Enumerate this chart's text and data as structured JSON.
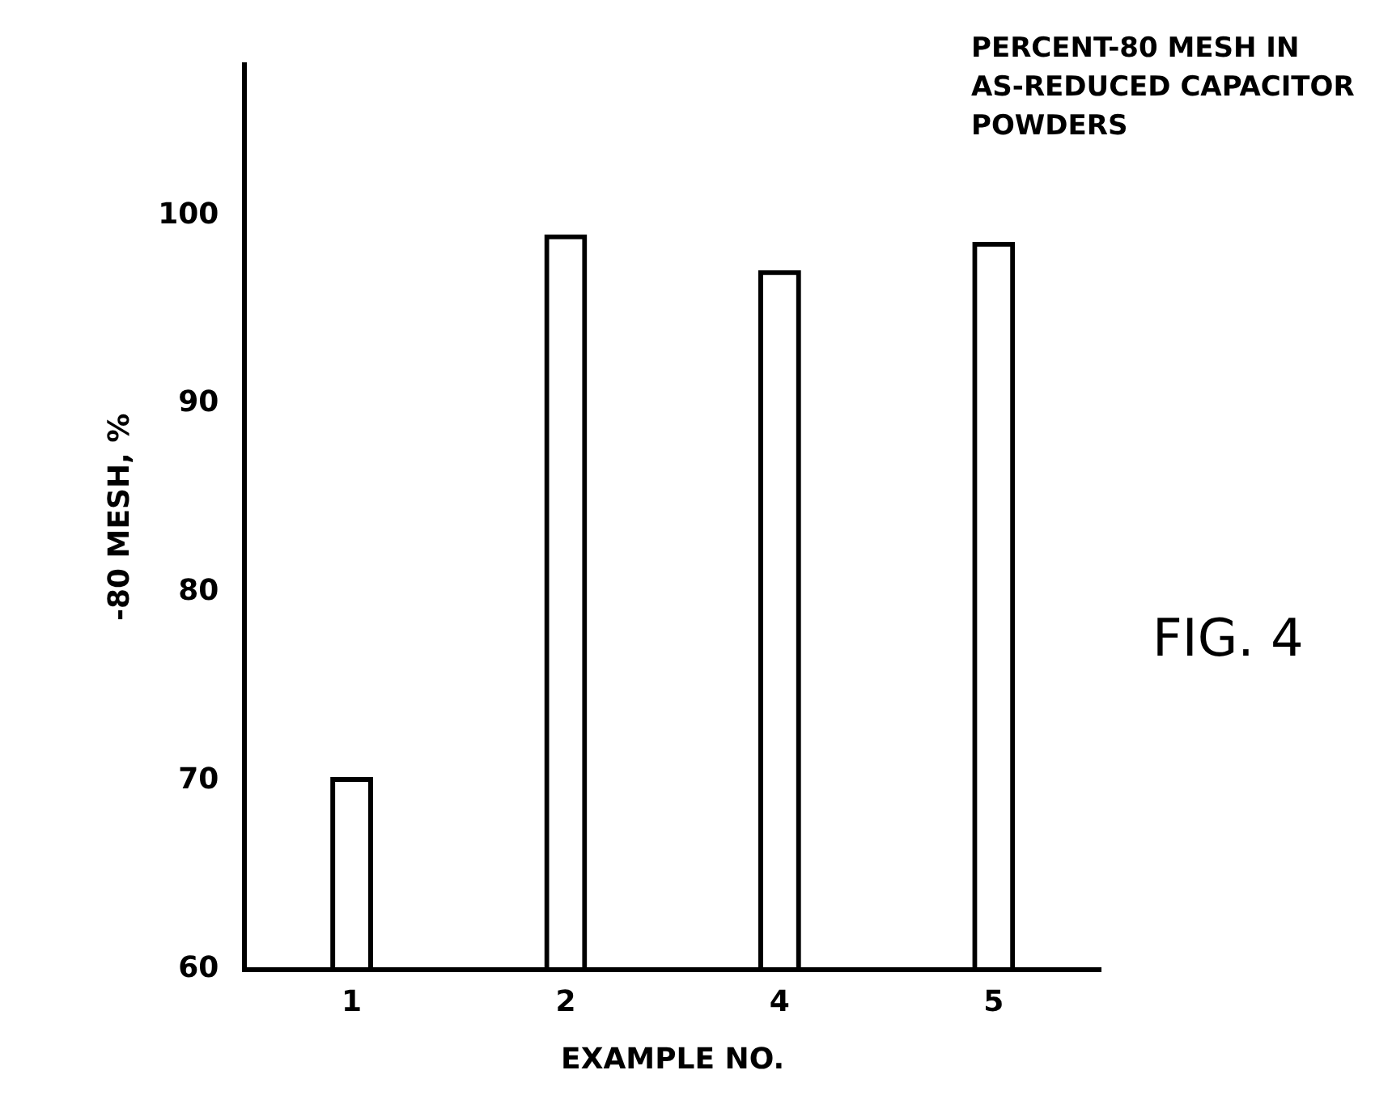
{
  "chart_data": {
    "type": "bar",
    "title": "PERCENT-80 MESH IN\nAS-REDUCED CAPACITOR\nPOWDERS",
    "xlabel": "EXAMPLE NO.",
    "ylabel": "-80 MESH, %",
    "categories": [
      "1",
      "2",
      "4",
      "5"
    ],
    "values": [
      70.2,
      99.0,
      97.1,
      98.6
    ],
    "color": "#000000",
    "ylim": [
      60,
      108
    ],
    "yticks": [
      60,
      70,
      80,
      90,
      100
    ],
    "grid": false,
    "annotations": [
      "FIG. 4"
    ]
  }
}
